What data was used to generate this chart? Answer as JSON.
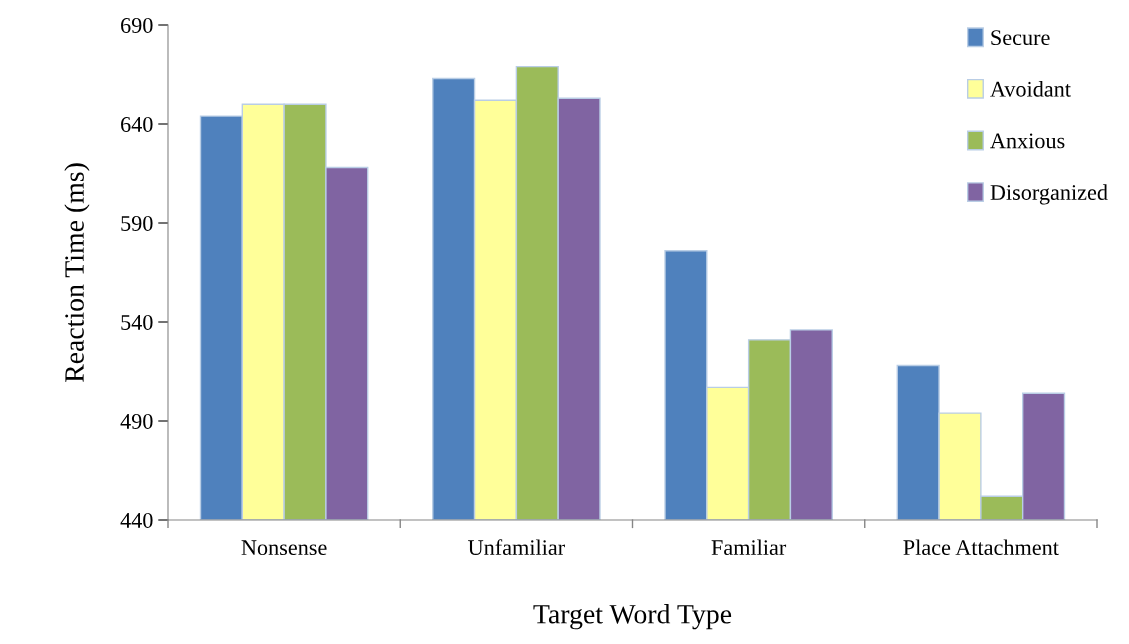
{
  "chart_data": {
    "type": "bar",
    "xlabel": "Target Word Type",
    "ylabel": "Reaction Time (ms)",
    "categories": [
      "Nonsense",
      "Unfamiliar",
      "Familiar",
      "Place Attachment"
    ],
    "series": [
      {
        "name": "Secure",
        "color": "#4f81bd",
        "values": [
          644,
          663,
          576,
          518
        ]
      },
      {
        "name": "Avoidant",
        "color": "#ffff99",
        "values": [
          650,
          652,
          507,
          494
        ]
      },
      {
        "name": "Anxious",
        "color": "#9bbb59",
        "values": [
          650,
          669,
          531,
          452
        ]
      },
      {
        "name": "Disorganized",
        "color": "#8064a2",
        "values": [
          618,
          653,
          536,
          504
        ]
      }
    ],
    "ylim": [
      440,
      690
    ],
    "yticks": [
      440,
      490,
      540,
      590,
      640,
      690
    ],
    "grid": false,
    "legend": "top right"
  }
}
